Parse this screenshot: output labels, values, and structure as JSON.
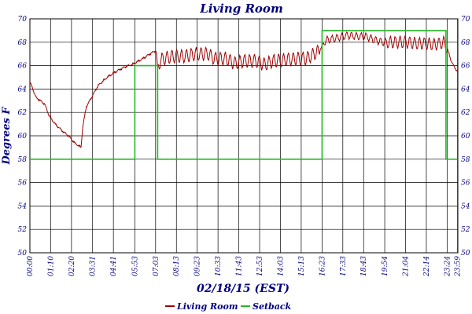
{
  "chart_data": {
    "type": "line",
    "title": "Living Room",
    "xlabel": "02/18/15 (EST)",
    "ylabel": "Degrees F",
    "ylim": [
      50,
      70
    ],
    "xlim_minutes": [
      0,
      1440
    ],
    "grid": true,
    "legend_position": "bottom-center",
    "y_ticks": [
      "50",
      "52",
      "54",
      "56",
      "58",
      "60",
      "62",
      "64",
      "66",
      "68",
      "70"
    ],
    "x_ticks": [
      {
        "label": "00:00",
        "minutes": 0
      },
      {
        "label": "01:10",
        "minutes": 70
      },
      {
        "label": "02:20",
        "minutes": 140
      },
      {
        "label": "03:31",
        "minutes": 211
      },
      {
        "label": "04:41",
        "minutes": 281
      },
      {
        "label": "05:53",
        "minutes": 353
      },
      {
        "label": "07:03",
        "minutes": 423
      },
      {
        "label": "08:13",
        "minutes": 493
      },
      {
        "label": "09:23",
        "minutes": 563
      },
      {
        "label": "10:33",
        "minutes": 633
      },
      {
        "label": "11:43",
        "minutes": 703
      },
      {
        "label": "12:53",
        "minutes": 773
      },
      {
        "label": "14:03",
        "minutes": 843
      },
      {
        "label": "15:13",
        "minutes": 913
      },
      {
        "label": "16:23",
        "minutes": 983
      },
      {
        "label": "17:33",
        "minutes": 1053
      },
      {
        "label": "18:43",
        "minutes": 1123
      },
      {
        "label": "19:54",
        "minutes": 1194
      },
      {
        "label": "21:04",
        "minutes": 1264
      },
      {
        "label": "22:14",
        "minutes": 1334
      },
      {
        "label": "23:24",
        "minutes": 1404
      },
      {
        "label": "23:59",
        "minutes": 1439
      }
    ],
    "series": [
      {
        "name": "Living Room",
        "color": "#a00000",
        "style": "noisy",
        "points": [
          [
            0,
            64.6
          ],
          [
            10,
            64.0
          ],
          [
            20,
            63.3
          ],
          [
            35,
            63.0
          ],
          [
            50,
            62.7
          ],
          [
            65,
            61.7
          ],
          [
            85,
            61.0
          ],
          [
            110,
            60.4
          ],
          [
            130,
            60.0
          ],
          [
            150,
            59.4
          ],
          [
            172,
            59.0
          ],
          [
            178,
            60.8
          ],
          [
            190,
            62.5
          ],
          [
            210,
            63.4
          ],
          [
            230,
            64.3
          ],
          [
            260,
            65.0
          ],
          [
            290,
            65.5
          ],
          [
            320,
            65.9
          ],
          [
            345,
            66.1
          ],
          [
            380,
            66.6
          ],
          [
            410,
            67.1
          ],
          [
            425,
            67.3
          ],
          [
            430,
            65.8
          ],
          [
            440,
            66.5
          ],
          [
            480,
            66.8
          ],
          [
            520,
            66.8
          ],
          [
            560,
            67.0
          ],
          [
            600,
            67.0
          ],
          [
            620,
            66.6
          ],
          [
            660,
            66.6
          ],
          [
            690,
            66.2
          ],
          [
            720,
            66.4
          ],
          [
            760,
            66.4
          ],
          [
            790,
            66.1
          ],
          [
            820,
            66.4
          ],
          [
            860,
            66.5
          ],
          [
            900,
            66.6
          ],
          [
            930,
            66.6
          ],
          [
            950,
            66.9
          ],
          [
            975,
            67.3
          ],
          [
            990,
            68.0
          ],
          [
            1000,
            68.2
          ],
          [
            1040,
            68.4
          ],
          [
            1070,
            68.6
          ],
          [
            1100,
            68.5
          ],
          [
            1130,
            68.5
          ],
          [
            1160,
            68.2
          ],
          [
            1190,
            68.0
          ],
          [
            1230,
            68.0
          ],
          [
            1270,
            68.0
          ],
          [
            1300,
            67.9
          ],
          [
            1330,
            67.9
          ],
          [
            1360,
            67.8
          ],
          [
            1380,
            67.9
          ],
          [
            1395,
            68.0
          ],
          [
            1405,
            67.4
          ],
          [
            1415,
            66.6
          ],
          [
            1425,
            66.0
          ],
          [
            1439,
            65.5
          ]
        ]
      },
      {
        "name": "Setback",
        "color": "#22bb22",
        "style": "step",
        "points": [
          [
            0,
            58
          ],
          [
            353,
            58
          ],
          [
            353,
            66
          ],
          [
            430,
            66
          ],
          [
            430,
            58
          ],
          [
            983,
            58
          ],
          [
            983,
            69
          ],
          [
            1400,
            69
          ],
          [
            1400,
            58
          ],
          [
            1439,
            58
          ]
        ]
      }
    ]
  }
}
